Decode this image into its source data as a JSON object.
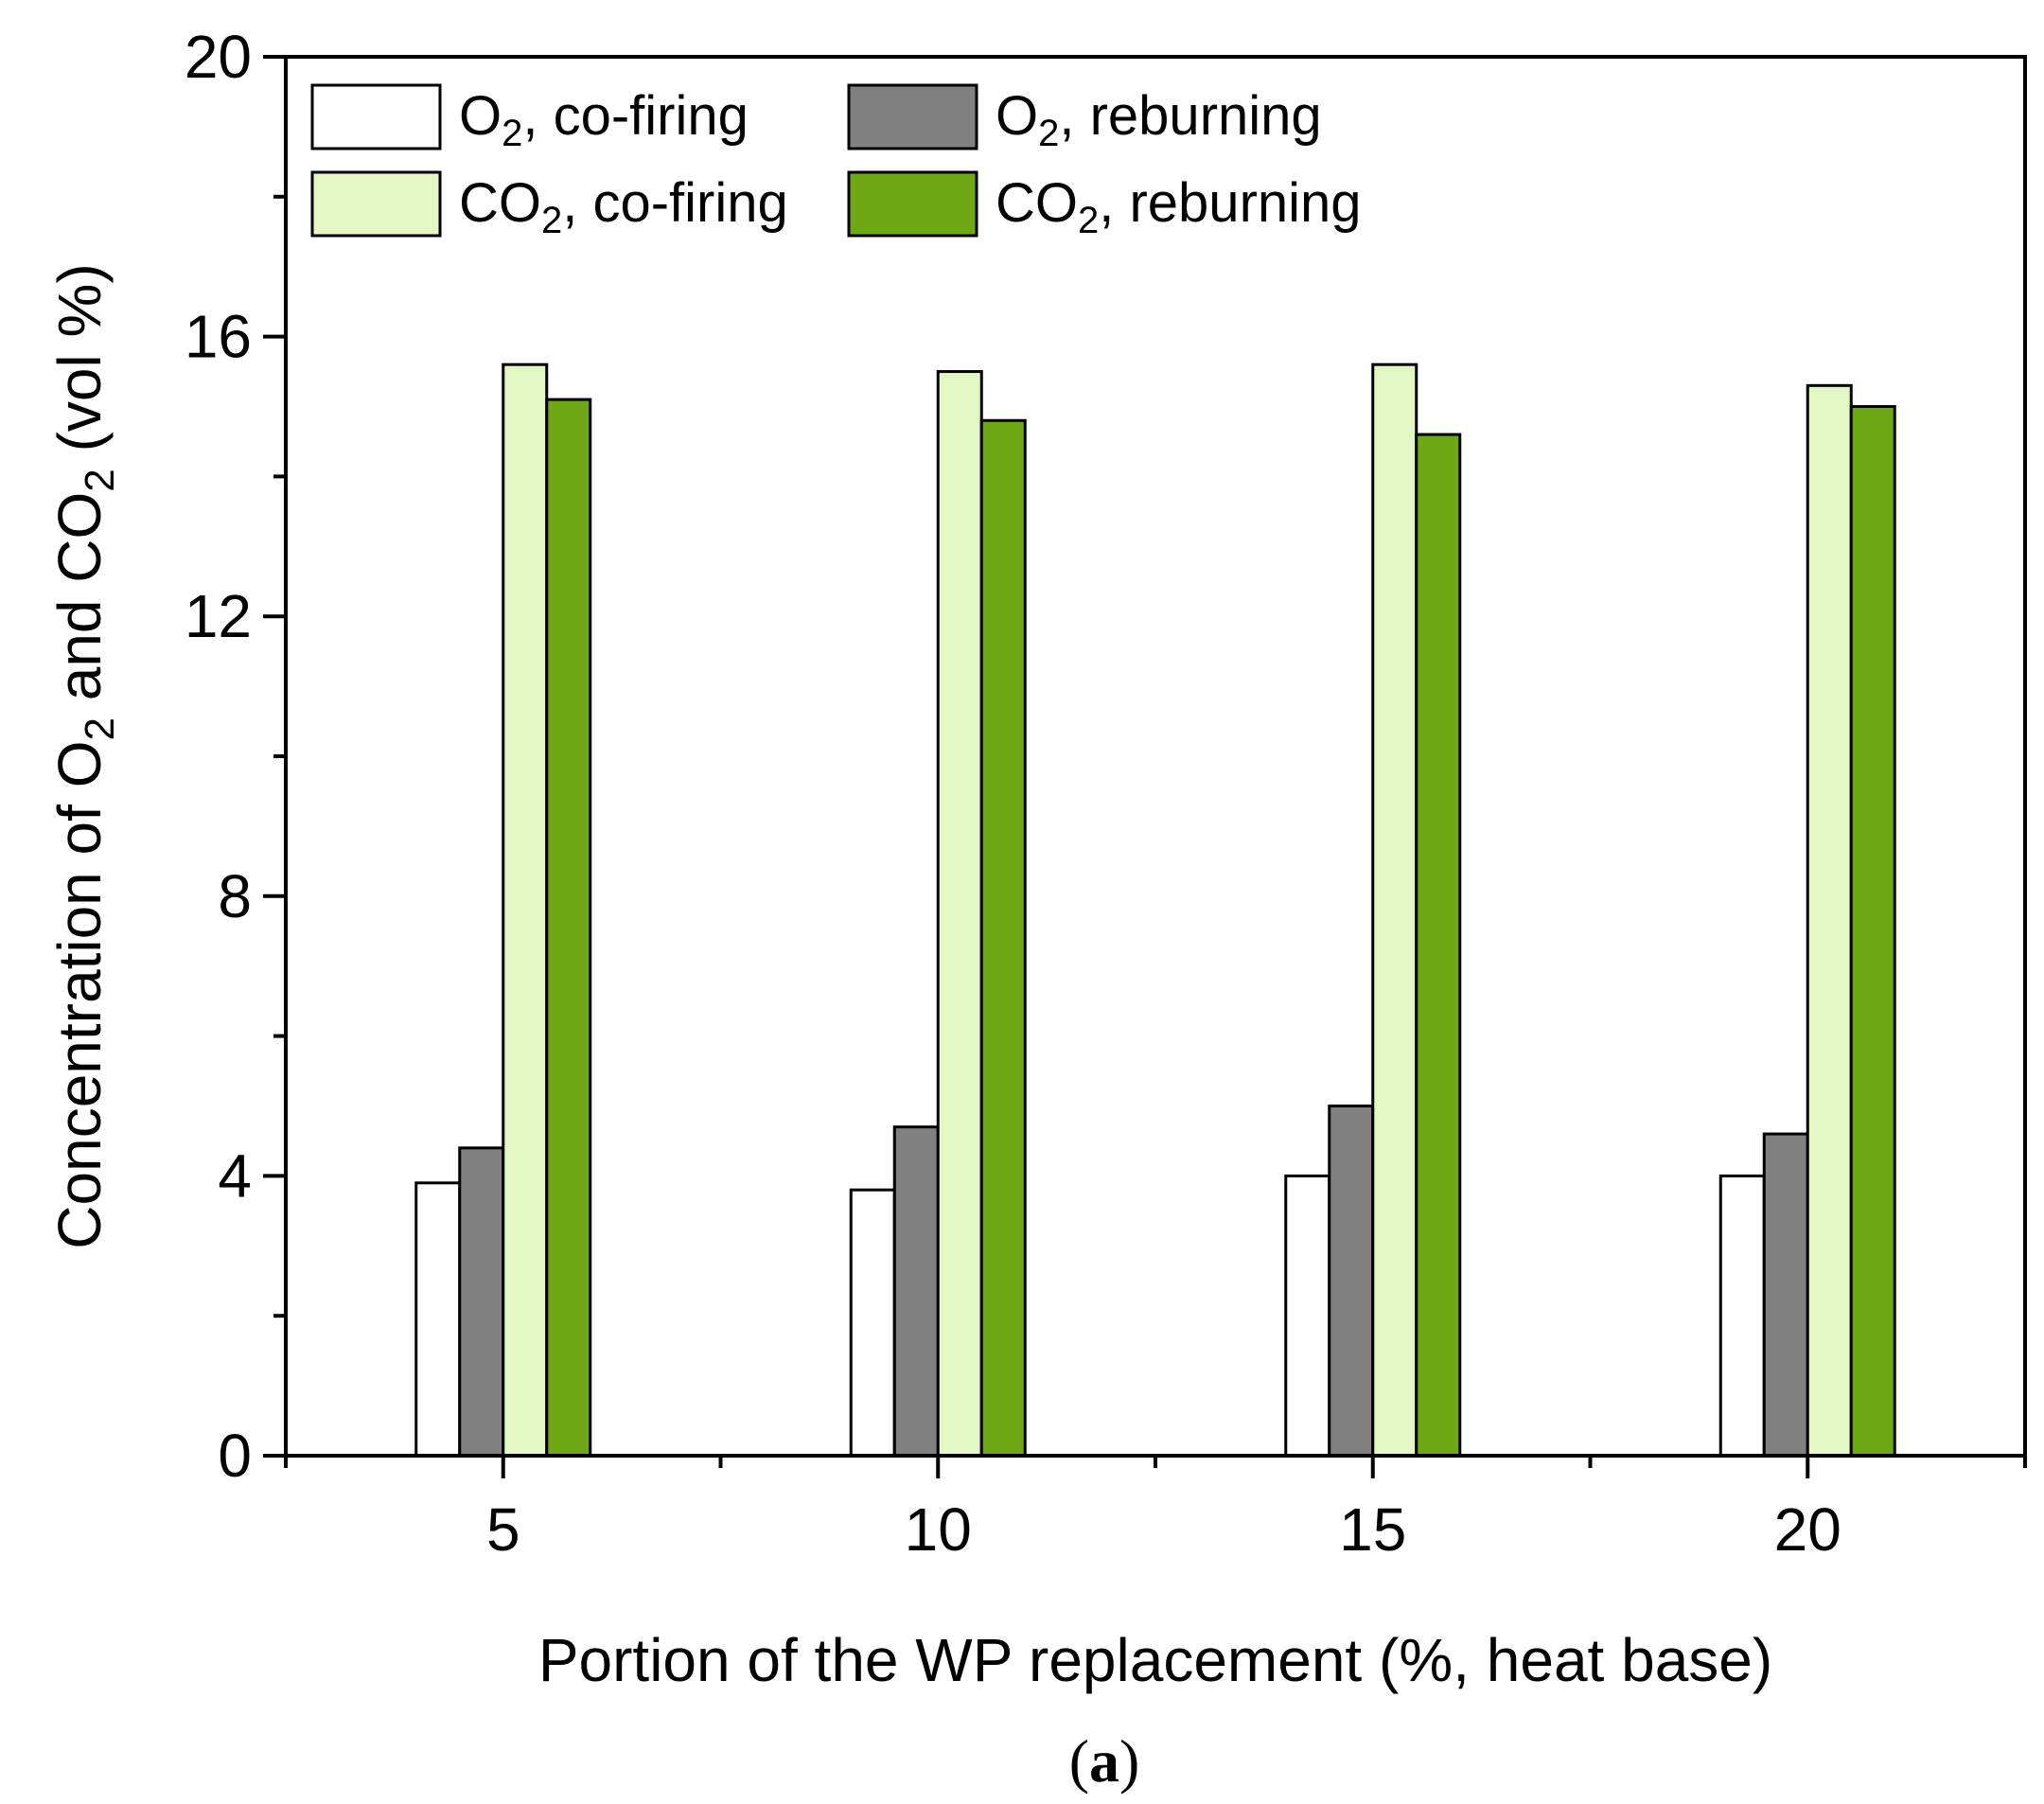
{
  "chart_data": {
    "type": "bar",
    "categories": [
      "5",
      "10",
      "15",
      "20"
    ],
    "series": [
      {
        "name_base": "O",
        "name_sub": "2",
        "name_rest": ", co-firing",
        "color": "#ffffff",
        "values": [
          3.9,
          3.8,
          4.0,
          4.0
        ]
      },
      {
        "name_base": "O",
        "name_sub": "2",
        "name_rest": ", reburning",
        "color": "#808080",
        "values": [
          4.4,
          4.7,
          5.0,
          4.6
        ]
      },
      {
        "name_base": "CO",
        "name_sub": "2",
        "name_rest": ", co-firing",
        "color": "#e2f7c4",
        "values": [
          15.6,
          15.5,
          15.6,
          15.3
        ]
      },
      {
        "name_base": "CO",
        "name_sub": "2",
        "name_rest": ", reburning",
        "color": "#6ea815",
        "values": [
          15.1,
          14.8,
          14.6,
          15.0
        ]
      }
    ],
    "ylim": [
      0,
      20
    ],
    "yticks": [
      0,
      4,
      8,
      12,
      16,
      20
    ],
    "y_minor_step": 2,
    "xlabel": "Portion of the WP replacement (%, heat base)",
    "ylabel_parts": [
      "Concentration of O",
      "2",
      " and CO",
      "2",
      " (vol %)"
    ],
    "caption_parts": [
      "(",
      "a",
      ")"
    ],
    "grid": false,
    "legend": "top-left, 2 columns"
  }
}
